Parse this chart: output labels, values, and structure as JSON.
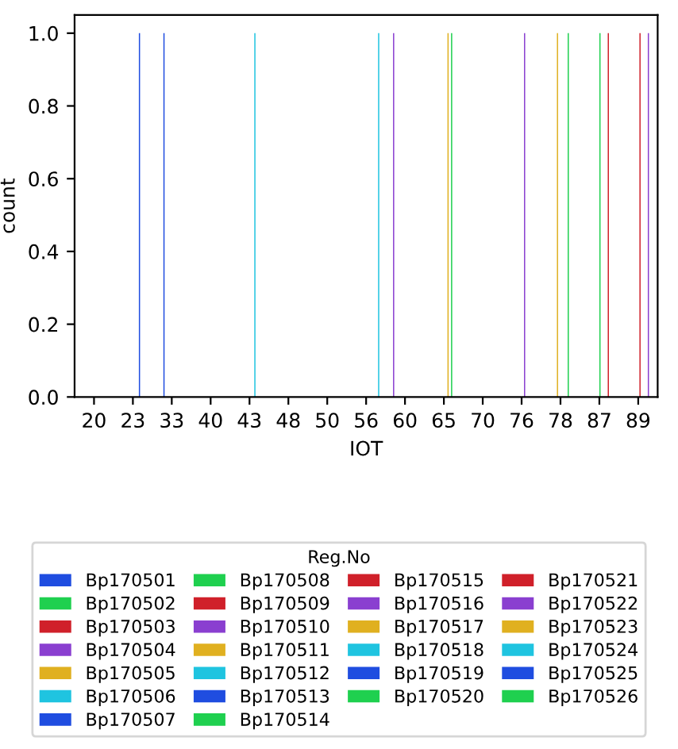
{
  "chart_data": {
    "type": "bar",
    "xlabel": "IOT",
    "ylabel": "count",
    "legend_title": "Reg.No",
    "categories": [
      "20",
      "23",
      "33",
      "40",
      "43",
      "48",
      "50",
      "56",
      "60",
      "65",
      "70",
      "76",
      "78",
      "87",
      "89"
    ],
    "ylim": [
      0,
      1.05
    ],
    "yticks": [
      {
        "value": 0,
        "label": "0.0"
      },
      {
        "value": 0.2,
        "label": "0.2"
      },
      {
        "value": 0.4,
        "label": "0.4"
      },
      {
        "value": 0.6,
        "label": "0.6"
      },
      {
        "value": 0.8,
        "label": "0.8"
      },
      {
        "value": 1,
        "label": "1.0"
      }
    ],
    "grid": false,
    "legend": "bottom",
    "series": [
      {
        "name": "Bp170501",
        "color": "#1f4de0",
        "values": [
          null,
          null,
          null,
          null,
          null,
          null,
          null,
          null,
          null,
          null,
          null,
          null,
          null,
          null,
          null
        ]
      },
      {
        "name": "Bp170502",
        "color": "#1fd04f",
        "values": [
          null,
          null,
          null,
          null,
          null,
          null,
          null,
          null,
          null,
          null,
          null,
          null,
          null,
          null,
          null
        ]
      },
      {
        "name": "Bp170503",
        "color": "#d0202a",
        "values": [
          null,
          null,
          null,
          null,
          null,
          null,
          null,
          null,
          null,
          null,
          null,
          null,
          null,
          null,
          null
        ]
      },
      {
        "name": "Bp170504",
        "color": "#8a3fd0",
        "values": [
          null,
          null,
          null,
          null,
          null,
          null,
          null,
          null,
          1,
          null,
          null,
          null,
          null,
          null,
          null
        ]
      },
      {
        "name": "Bp170505",
        "color": "#e0b020",
        "values": [
          null,
          null,
          null,
          null,
          null,
          null,
          null,
          null,
          null,
          null,
          null,
          null,
          null,
          null,
          null
        ]
      },
      {
        "name": "Bp170506",
        "color": "#1fc4e0",
        "values": [
          null,
          null,
          null,
          null,
          null,
          null,
          null,
          null,
          null,
          null,
          null,
          null,
          null,
          null,
          null
        ]
      },
      {
        "name": "Bp170507",
        "color": "#1f4de0",
        "values": [
          null,
          null,
          1,
          null,
          null,
          null,
          null,
          null,
          null,
          null,
          null,
          null,
          null,
          null,
          null
        ]
      },
      {
        "name": "Bp170508",
        "color": "#1fd04f",
        "values": [
          null,
          null,
          null,
          null,
          null,
          null,
          null,
          null,
          null,
          null,
          null,
          null,
          null,
          null,
          null
        ]
      },
      {
        "name": "Bp170509",
        "color": "#d0202a",
        "values": [
          null,
          null,
          null,
          null,
          null,
          null,
          null,
          null,
          null,
          null,
          null,
          null,
          null,
          null,
          null
        ]
      },
      {
        "name": "Bp170510",
        "color": "#8a3fd0",
        "values": [
          null,
          null,
          null,
          null,
          null,
          null,
          null,
          null,
          null,
          null,
          null,
          null,
          null,
          null,
          null
        ]
      },
      {
        "name": "Bp170511",
        "color": "#e0b020",
        "values": [
          null,
          null,
          null,
          null,
          null,
          null,
          null,
          null,
          null,
          null,
          null,
          null,
          1,
          null,
          null
        ]
      },
      {
        "name": "Bp170512",
        "color": "#1fc4e0",
        "values": [
          null,
          null,
          null,
          null,
          null,
          null,
          null,
          null,
          null,
          null,
          null,
          null,
          null,
          null,
          null
        ]
      },
      {
        "name": "Bp170513",
        "color": "#1f4de0",
        "values": [
          null,
          null,
          null,
          null,
          null,
          null,
          null,
          null,
          null,
          null,
          null,
          null,
          null,
          null,
          null
        ]
      },
      {
        "name": "Bp170514",
        "color": "#1fd04f",
        "values": [
          null,
          null,
          null,
          null,
          null,
          null,
          null,
          null,
          null,
          null,
          null,
          null,
          null,
          1,
          null
        ]
      },
      {
        "name": "Bp170515",
        "color": "#d0202a",
        "values": [
          null,
          null,
          null,
          null,
          null,
          null,
          null,
          null,
          null,
          null,
          null,
          null,
          null,
          null,
          1
        ]
      },
      {
        "name": "Bp170516",
        "color": "#8a3fd0",
        "values": [
          null,
          null,
          null,
          null,
          null,
          null,
          null,
          null,
          null,
          null,
          null,
          1,
          null,
          null,
          null
        ]
      },
      {
        "name": "Bp170517",
        "color": "#e0b020",
        "values": [
          null,
          null,
          null,
          null,
          null,
          null,
          null,
          null,
          null,
          1,
          null,
          null,
          null,
          null,
          null
        ]
      },
      {
        "name": "Bp170518",
        "color": "#1fc4e0",
        "values": [
          null,
          null,
          null,
          null,
          1,
          null,
          null,
          null,
          null,
          null,
          null,
          null,
          null,
          null,
          null
        ]
      },
      {
        "name": "Bp170519",
        "color": "#1f4de0",
        "values": [
          null,
          1,
          null,
          null,
          null,
          null,
          null,
          null,
          null,
          null,
          null,
          null,
          null,
          null,
          null
        ]
      },
      {
        "name": "Bp170520",
        "color": "#1fd04f",
        "values": [
          null,
          null,
          null,
          null,
          null,
          null,
          null,
          null,
          null,
          1,
          null,
          null,
          1,
          null,
          null
        ]
      },
      {
        "name": "Bp170521",
        "color": "#d0202a",
        "values": [
          null,
          null,
          null,
          null,
          null,
          null,
          null,
          null,
          null,
          null,
          null,
          null,
          null,
          1,
          null
        ]
      },
      {
        "name": "Bp170522",
        "color": "#8a3fd0",
        "values": [
          null,
          null,
          null,
          null,
          null,
          null,
          null,
          null,
          null,
          null,
          null,
          null,
          null,
          null,
          1
        ]
      },
      {
        "name": "Bp170523",
        "color": "#e0b020",
        "values": [
          null,
          null,
          null,
          null,
          null,
          null,
          null,
          null,
          null,
          null,
          null,
          null,
          null,
          null,
          null
        ]
      },
      {
        "name": "Bp170524",
        "color": "#1fc4e0",
        "values": [
          null,
          null,
          null,
          null,
          null,
          null,
          null,
          1,
          null,
          null,
          null,
          null,
          null,
          null,
          null
        ]
      },
      {
        "name": "Bp170525",
        "color": "#1f4de0",
        "values": [
          null,
          null,
          null,
          null,
          null,
          null,
          null,
          null,
          null,
          null,
          null,
          null,
          null,
          null,
          null
        ]
      },
      {
        "name": "Bp170526",
        "color": "#1fd04f",
        "values": [
          null,
          null,
          null,
          null,
          null,
          null,
          null,
          null,
          null,
          null,
          null,
          null,
          null,
          null,
          null
        ]
      }
    ]
  }
}
